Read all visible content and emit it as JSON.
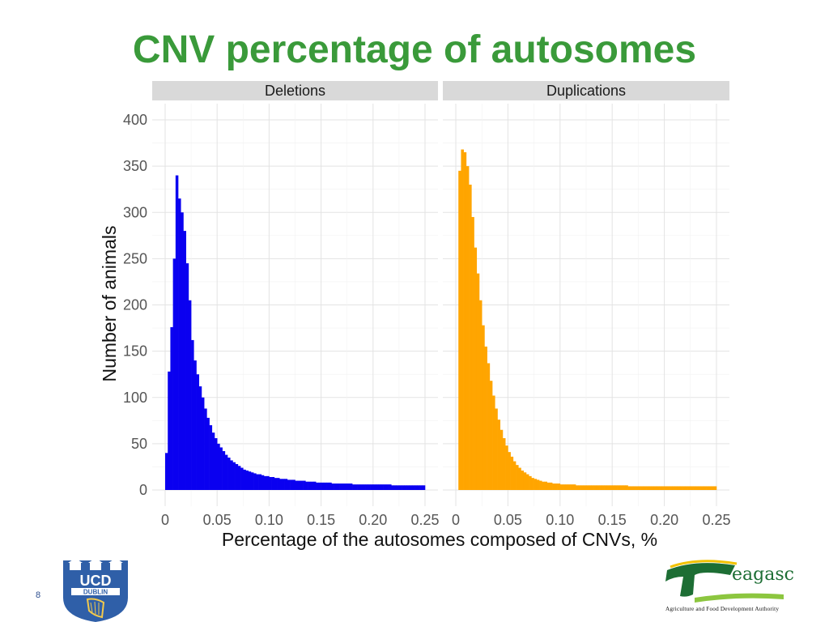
{
  "slide": {
    "title": "CNV percentage of autosomes",
    "page_number": "8"
  },
  "logos": {
    "ucd_text_top": "UCD",
    "ucd_text_bottom": "DUBLIN",
    "teagasc_word": "eagasc",
    "teagasc_subtitle": "Agriculture and Food Development Authority"
  },
  "colors": {
    "title": "#3a9a3a",
    "deletions": "#0a00f0",
    "duplications": "#ffa500",
    "grid": "#e3e3e3",
    "strip": "#d9d9d9"
  },
  "chart_data": {
    "type": "bar",
    "subtype": "faceted-histogram",
    "xlabel": "Percentage of the autosomes composed of CNVs, %",
    "ylabel": "Number of animals",
    "xlim": [
      0,
      0.25
    ],
    "ylim": [
      0,
      400
    ],
    "x_ticks": [
      "0",
      "0.05",
      "0.10",
      "0.15",
      "0.20",
      "0.25"
    ],
    "x_tick_values": [
      0,
      0.05,
      0.1,
      0.15,
      0.2,
      0.25
    ],
    "y_ticks": [
      "0",
      "50",
      "100",
      "150",
      "200",
      "250",
      "300",
      "350",
      "400"
    ],
    "y_tick_values": [
      0,
      50,
      100,
      150,
      200,
      250,
      300,
      350,
      400
    ],
    "grid": true,
    "bin_width": 0.0025,
    "bin_start": 0,
    "series": [
      {
        "name": "Deletions",
        "color": "#0a00f0",
        "values": [
          40,
          128,
          176,
          250,
          340,
          315,
          300,
          280,
          245,
          205,
          162,
          140,
          125,
          112,
          100,
          88,
          78,
          70,
          62,
          56,
          50,
          46,
          42,
          38,
          35,
          32,
          30,
          28,
          26,
          24,
          22,
          21,
          20,
          19,
          18,
          17,
          17,
          16,
          15,
          15,
          14,
          14,
          13,
          13,
          12,
          12,
          12,
          11,
          11,
          11,
          10,
          10,
          10,
          10,
          9,
          9,
          9,
          9,
          8,
          8,
          8,
          8,
          8,
          8,
          7,
          7,
          7,
          7,
          7,
          7,
          7,
          7,
          6,
          6,
          6,
          6,
          6,
          6,
          6,
          6,
          6,
          6,
          6,
          6,
          6,
          6,
          6,
          5,
          5,
          5,
          5,
          5,
          5,
          5,
          5,
          5,
          5,
          5,
          5,
          5
        ]
      },
      {
        "name": "Duplications",
        "color": "#ffa500",
        "values": [
          0,
          345,
          368,
          365,
          350,
          330,
          295,
          262,
          234,
          205,
          178,
          155,
          137,
          118,
          102,
          88,
          76,
          65,
          56,
          48,
          41,
          36,
          31,
          27,
          24,
          21,
          19,
          17,
          15,
          13,
          12,
          11,
          10,
          9,
          9,
          8,
          8,
          7,
          7,
          7,
          6,
          6,
          6,
          6,
          6,
          6,
          5,
          5,
          5,
          5,
          5,
          5,
          5,
          5,
          5,
          5,
          5,
          5,
          5,
          5,
          5,
          5,
          5,
          5,
          5,
          5,
          4,
          4,
          4,
          4,
          4,
          4,
          4,
          4,
          4,
          4,
          4,
          4,
          4,
          4,
          4,
          4,
          4,
          4,
          4,
          4,
          4,
          4,
          4,
          4,
          4,
          4,
          4,
          4,
          4,
          4,
          4,
          4,
          4,
          4
        ]
      }
    ]
  }
}
